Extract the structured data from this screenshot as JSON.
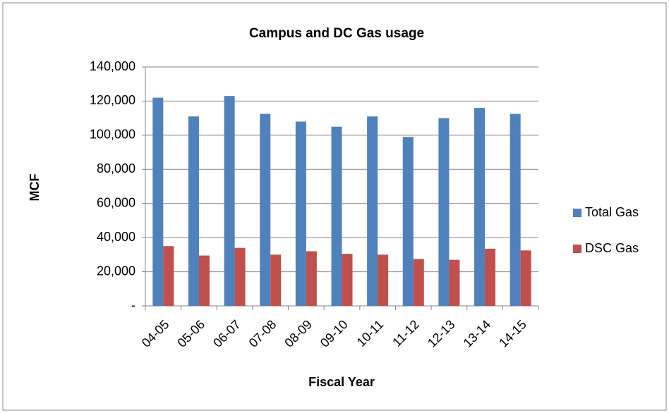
{
  "chart_data": {
    "type": "bar",
    "title": "Campus and DC Gas usage",
    "x_label": "Fiscal Year",
    "y_label": "MCF",
    "categories": [
      "04-05",
      "05-06",
      "06-07",
      "07-08",
      "08-09",
      "09-10",
      "10-11",
      "11-12",
      "12-13",
      "13-14",
      "14-15"
    ],
    "series": [
      {
        "name": "Total Gas",
        "color": "#4f81bd",
        "values": [
          122000,
          111000,
          123000,
          112500,
          108000,
          105000,
          111000,
          99000,
          110000,
          116000,
          112500
        ]
      },
      {
        "name": "DSC Gas",
        "color": "#c0504d",
        "values": [
          35000,
          29500,
          34000,
          30000,
          32000,
          30500,
          30000,
          27500,
          27000,
          33500,
          32500
        ]
      }
    ],
    "ylim": [
      0,
      140000
    ],
    "yticks": [
      {
        "value": 0,
        "label": "-"
      },
      {
        "value": 20000,
        "label": "20,000"
      },
      {
        "value": 40000,
        "label": "40,000"
      },
      {
        "value": 60000,
        "label": "60,000"
      },
      {
        "value": 80000,
        "label": "80,000"
      },
      {
        "value": 100000,
        "label": "100,000"
      },
      {
        "value": 120000,
        "label": "120,000"
      },
      {
        "value": 140000,
        "label": "140,000"
      }
    ],
    "grid": true,
    "legend": "right"
  }
}
